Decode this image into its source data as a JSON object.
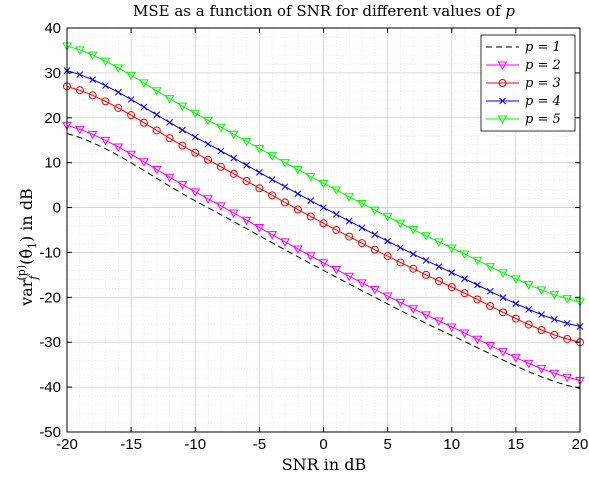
{
  "chart_data": {
    "type": "line",
    "title": "MSE as a function of SNR for different values of p",
    "xlabel": "SNR in dB",
    "ylabel": "var_f^(p)(θ̂_1) in dB",
    "xlim": [
      -20,
      20
    ],
    "ylim": [
      -50,
      40
    ],
    "xticks": [
      -20,
      -15,
      -10,
      -5,
      0,
      5,
      10,
      15,
      20
    ],
    "yticks": [
      -50,
      -40,
      -30,
      -20,
      -10,
      0,
      10,
      20,
      30,
      40
    ],
    "grid": true,
    "legend_position": "top-right",
    "x_step": 1,
    "series": [
      {
        "name": "p = 1",
        "color": "#000000",
        "style": "dashed",
        "marker": "none",
        "x": [
          -20,
          20
        ],
        "y": [
          16.5,
          -40.3
        ],
        "anchors": [
          [
            -20,
            16.5
          ],
          [
            -10,
            1.5
          ],
          [
            0,
            -14
          ],
          [
            10,
            -28.5
          ],
          [
            20,
            -40.3
          ]
        ]
      },
      {
        "name": "p = 2",
        "color": "#ff00ff",
        "style": "solid",
        "marker": "triangle-down",
        "x": [
          -20,
          20
        ],
        "y": [
          18.3,
          -38.5
        ],
        "anchors": [
          [
            -20,
            18.3
          ],
          [
            -10,
            3.5
          ],
          [
            0,
            -12.3
          ],
          [
            10,
            -26.6
          ],
          [
            20,
            -38.5
          ]
        ]
      },
      {
        "name": "p = 3",
        "color": "#ff0000",
        "style": "solid",
        "marker": "circle",
        "x": [
          -20,
          20
        ],
        "y": [
          27.0,
          -30.0
        ],
        "anchors": [
          [
            -20,
            27.0
          ],
          [
            -10,
            12.2
          ],
          [
            0,
            -3.5
          ],
          [
            10,
            -17.7
          ],
          [
            20,
            -30.0
          ]
        ]
      },
      {
        "name": "p = 4",
        "color": "#0000ff",
        "style": "solid",
        "marker": "x",
        "x": [
          -20,
          20
        ],
        "y": [
          30.5,
          -26.5
        ],
        "anchors": [
          [
            -20,
            30.5
          ],
          [
            -10,
            15.7
          ],
          [
            0,
            0.0
          ],
          [
            10,
            -14.5
          ],
          [
            20,
            -26.5
          ]
        ]
      },
      {
        "name": "p = 5",
        "color": "#00ff00",
        "style": "solid",
        "marker": "triangle-down",
        "x": [
          -20,
          20
        ],
        "y": [
          36.0,
          -21.0
        ],
        "anchors": [
          [
            -20,
            36.0
          ],
          [
            -10,
            21.0
          ],
          [
            0,
            5.4
          ],
          [
            10,
            -9.0
          ],
          [
            20,
            -21.0
          ]
        ]
      }
    ]
  }
}
